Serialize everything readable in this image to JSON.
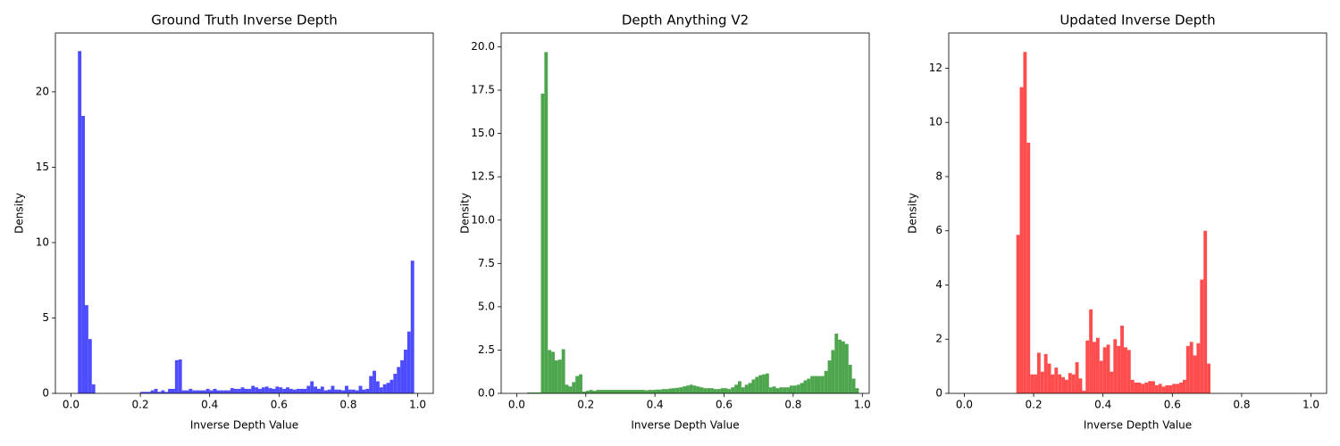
{
  "chart_data": [
    {
      "type": "histogram",
      "title": "Ground Truth Inverse Depth",
      "x_label": "Inverse Depth Value",
      "y_label": "Density",
      "color": "#4d4dff",
      "bins": [
        0.02,
        0.03,
        0.04,
        0.05,
        0.06,
        0.07,
        0.2,
        0.21,
        0.22,
        0.23,
        0.24,
        0.25,
        0.26,
        0.27,
        0.28,
        0.29,
        0.3,
        0.31,
        0.32,
        0.33,
        0.34,
        0.35,
        0.36,
        0.37,
        0.38,
        0.39,
        0.4,
        0.41,
        0.42,
        0.43,
        0.44,
        0.45,
        0.46,
        0.47,
        0.48,
        0.49,
        0.5,
        0.51,
        0.52,
        0.53,
        0.54,
        0.55,
        0.56,
        0.57,
        0.58,
        0.59,
        0.6,
        0.61,
        0.62,
        0.63,
        0.64,
        0.65,
        0.66,
        0.67,
        0.68,
        0.69,
        0.7,
        0.71,
        0.72,
        0.73,
        0.74,
        0.75,
        0.76,
        0.77,
        0.78,
        0.79,
        0.8,
        0.81,
        0.82,
        0.83,
        0.84,
        0.85,
        0.86,
        0.87,
        0.88,
        0.89,
        0.9,
        0.91,
        0.92,
        0.93,
        0.94,
        0.95,
        0.96,
        0.97,
        0.98,
        0.99
      ],
      "values": [
        22.7,
        18.4,
        5.85,
        3.6,
        0.6,
        0,
        0.1,
        0.1,
        0.1,
        0.2,
        0.3,
        0.1,
        0.2,
        0.1,
        0.3,
        0.3,
        2.2,
        2.25,
        0.2,
        0.2,
        0.3,
        0.2,
        0.2,
        0.2,
        0.2,
        0.3,
        0.2,
        0.3,
        0.2,
        0.2,
        0.2,
        0.2,
        0.35,
        0.3,
        0.3,
        0.4,
        0.3,
        0.3,
        0.5,
        0.4,
        0.3,
        0.4,
        0.45,
        0.35,
        0.3,
        0.45,
        0.4,
        0.3,
        0.4,
        0.3,
        0.25,
        0.3,
        0.3,
        0.3,
        0.5,
        0.8,
        0.45,
        0.3,
        0.45,
        0.2,
        0.25,
        0.5,
        0.25,
        0.25,
        0.2,
        0.5,
        0.25,
        0.25,
        0.2,
        0.5,
        0.25,
        0.3,
        1.15,
        1.5,
        0.8,
        0.4,
        0.6,
        0.7,
        0.9,
        1.3,
        1.75,
        2.2,
        2.9,
        4.1,
        8.8
      ],
      "xlim": [
        -0.045,
        1.045
      ],
      "ylim": [
        0,
        23.9
      ],
      "xticks": [
        {
          "value": 0,
          "label": "0.0"
        },
        0.2,
        0.4,
        0.6,
        0.8,
        {
          "value": 1,
          "label": "1.0"
        }
      ],
      "yticks": [
        0,
        5,
        10,
        15,
        20
      ]
    },
    {
      "type": "histogram",
      "title": "Depth Anything V2",
      "x_label": "Inverse Depth Value",
      "y_label": "Density",
      "color": "#4da64d",
      "bins": [
        0.03,
        0.07,
        0.08,
        0.09,
        0.1,
        0.11,
        0.12,
        0.13,
        0.14,
        0.15,
        0.16,
        0.17,
        0.18,
        0.19,
        0.2,
        0.21,
        0.22,
        0.23,
        0.37,
        0.38,
        0.39,
        0.4,
        0.41,
        0.42,
        0.43,
        0.44,
        0.45,
        0.46,
        0.47,
        0.48,
        0.49,
        0.5,
        0.51,
        0.52,
        0.53,
        0.54,
        0.55,
        0.56,
        0.57,
        0.58,
        0.59,
        0.6,
        0.61,
        0.62,
        0.63,
        0.64,
        0.65,
        0.66,
        0.67,
        0.68,
        0.69,
        0.7,
        0.71,
        0.72,
        0.73,
        0.74,
        0.75,
        0.76,
        0.77,
        0.78,
        0.79,
        0.8,
        0.81,
        0.82,
        0.83,
        0.84,
        0.85,
        0.86,
        0.87,
        0.88,
        0.89,
        0.9,
        0.91,
        0.92,
        0.93,
        0.94,
        0.95,
        0.96,
        0.97,
        0.98,
        0.99
      ],
      "values": [
        0.05,
        17.3,
        19.7,
        2.5,
        2.4,
        1.9,
        1.95,
        2.55,
        0.5,
        0.4,
        0.65,
        1.0,
        1.1,
        0.1,
        0.15,
        0.2,
        0.15,
        0.2,
        0.18,
        0.2,
        0.2,
        0.22,
        0.22,
        0.25,
        0.25,
        0.28,
        0.3,
        0.32,
        0.35,
        0.4,
        0.45,
        0.5,
        0.45,
        0.4,
        0.35,
        0.3,
        0.3,
        0.3,
        0.25,
        0.25,
        0.3,
        0.3,
        0.25,
        0.35,
        0.5,
        0.7,
        0.35,
        0.5,
        0.6,
        0.8,
        0.95,
        1.05,
        1.1,
        1.15,
        0.35,
        0.4,
        0.3,
        0.35,
        0.35,
        0.35,
        0.45,
        0.45,
        0.5,
        0.6,
        0.75,
        0.85,
        1.0,
        1.0,
        1.0,
        1.0,
        1.3,
        1.9,
        2.5,
        3.45,
        3.1,
        3.0,
        2.85,
        1.65,
        0.85,
        0.3
      ],
      "xlim": [
        -0.045,
        1.02
      ],
      "ylim": [
        0,
        20.8
      ],
      "xticks": [
        {
          "value": 0,
          "label": "0.0"
        },
        0.2,
        0.4,
        0.6,
        0.8,
        {
          "value": 1,
          "label": "1.0"
        }
      ],
      "yticks": [
        {
          "value": 0,
          "label": "0.0"
        },
        2.5,
        {
          "value": 5,
          "label": "5.0"
        },
        7.5,
        {
          "value": 10,
          "label": "10.0"
        },
        12.5,
        {
          "value": 15,
          "label": "15.0"
        },
        17.5,
        {
          "value": 20,
          "label": "20.0"
        }
      ]
    },
    {
      "type": "histogram",
      "title": "Updated Inverse Depth",
      "x_label": "Inverse Depth Value",
      "y_label": "Density",
      "color": "#ff4d4d",
      "bins": [
        0.15,
        0.16,
        0.17,
        0.18,
        0.19,
        0.2,
        0.21,
        0.22,
        0.23,
        0.24,
        0.25,
        0.26,
        0.27,
        0.28,
        0.29,
        0.3,
        0.31,
        0.32,
        0.33,
        0.34,
        0.35,
        0.36,
        0.37,
        0.38,
        0.39,
        0.4,
        0.41,
        0.42,
        0.43,
        0.44,
        0.45,
        0.46,
        0.47,
        0.48,
        0.49,
        0.5,
        0.51,
        0.52,
        0.53,
        0.54,
        0.55,
        0.56,
        0.57,
        0.58,
        0.59,
        0.6,
        0.61,
        0.62,
        0.63,
        0.64,
        0.65,
        0.66,
        0.67,
        0.68,
        0.69,
        0.7,
        0.71
      ],
      "values": [
        5.85,
        11.3,
        12.6,
        9.25,
        0.7,
        0.7,
        1.5,
        0.8,
        1.45,
        1.1,
        0.7,
        0.95,
        0.7,
        0.6,
        0.5,
        0.75,
        0.7,
        1.15,
        0.55,
        0.1,
        1.95,
        3.1,
        1.9,
        2.05,
        1.2,
        1.7,
        1.8,
        0.8,
        2.0,
        1.75,
        2.5,
        1.7,
        1.6,
        0.5,
        0.4,
        0.4,
        0.35,
        0.4,
        0.45,
        0.45,
        0.3,
        0.35,
        0.25,
        0.3,
        0.3,
        0.35,
        0.35,
        0.4,
        0.5,
        1.75,
        1.9,
        1.4,
        1.85,
        4.2,
        6.0,
        1.1
      ],
      "xlim": [
        -0.045,
        1.045
      ],
      "ylim": [
        0,
        13.3
      ],
      "xticks": [
        {
          "value": 0,
          "label": "0.0"
        },
        0.2,
        0.4,
        0.6,
        0.8,
        {
          "value": 1,
          "label": "1.0"
        }
      ],
      "yticks": [
        0,
        2,
        4,
        6,
        8,
        10,
        12
      ]
    }
  ]
}
